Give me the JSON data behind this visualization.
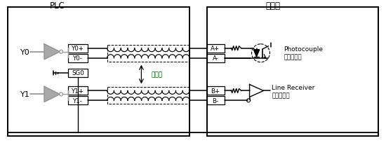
{
  "bg_color": "#ffffff",
  "line_color": "#000000",
  "gray_color": "#999999",
  "text_color": "#000000",
  "plc_label": "PLC",
  "driver_label": "驱动器",
  "y0_label": "Y0",
  "y1_label": "Y1",
  "y0p_label": "Y0+",
  "y0m_label": "Y0-",
  "sg0_label": "SG0",
  "y1p_label": "Y1+",
  "y1m_label": "Y1-",
  "ap_label": "A+",
  "am_label": "A-",
  "bp_label": "B+",
  "bm_label": "B-",
  "twisted_label": "双绞线",
  "photocouple_label": "Photocouple",
  "photocouple_sub": "输入之配线",
  "linereceiver_label": "Line Receiver",
  "linereceiver_sub": "输入之配线",
  "fig_width": 5.5,
  "fig_height": 2.05,
  "dpi": 100
}
